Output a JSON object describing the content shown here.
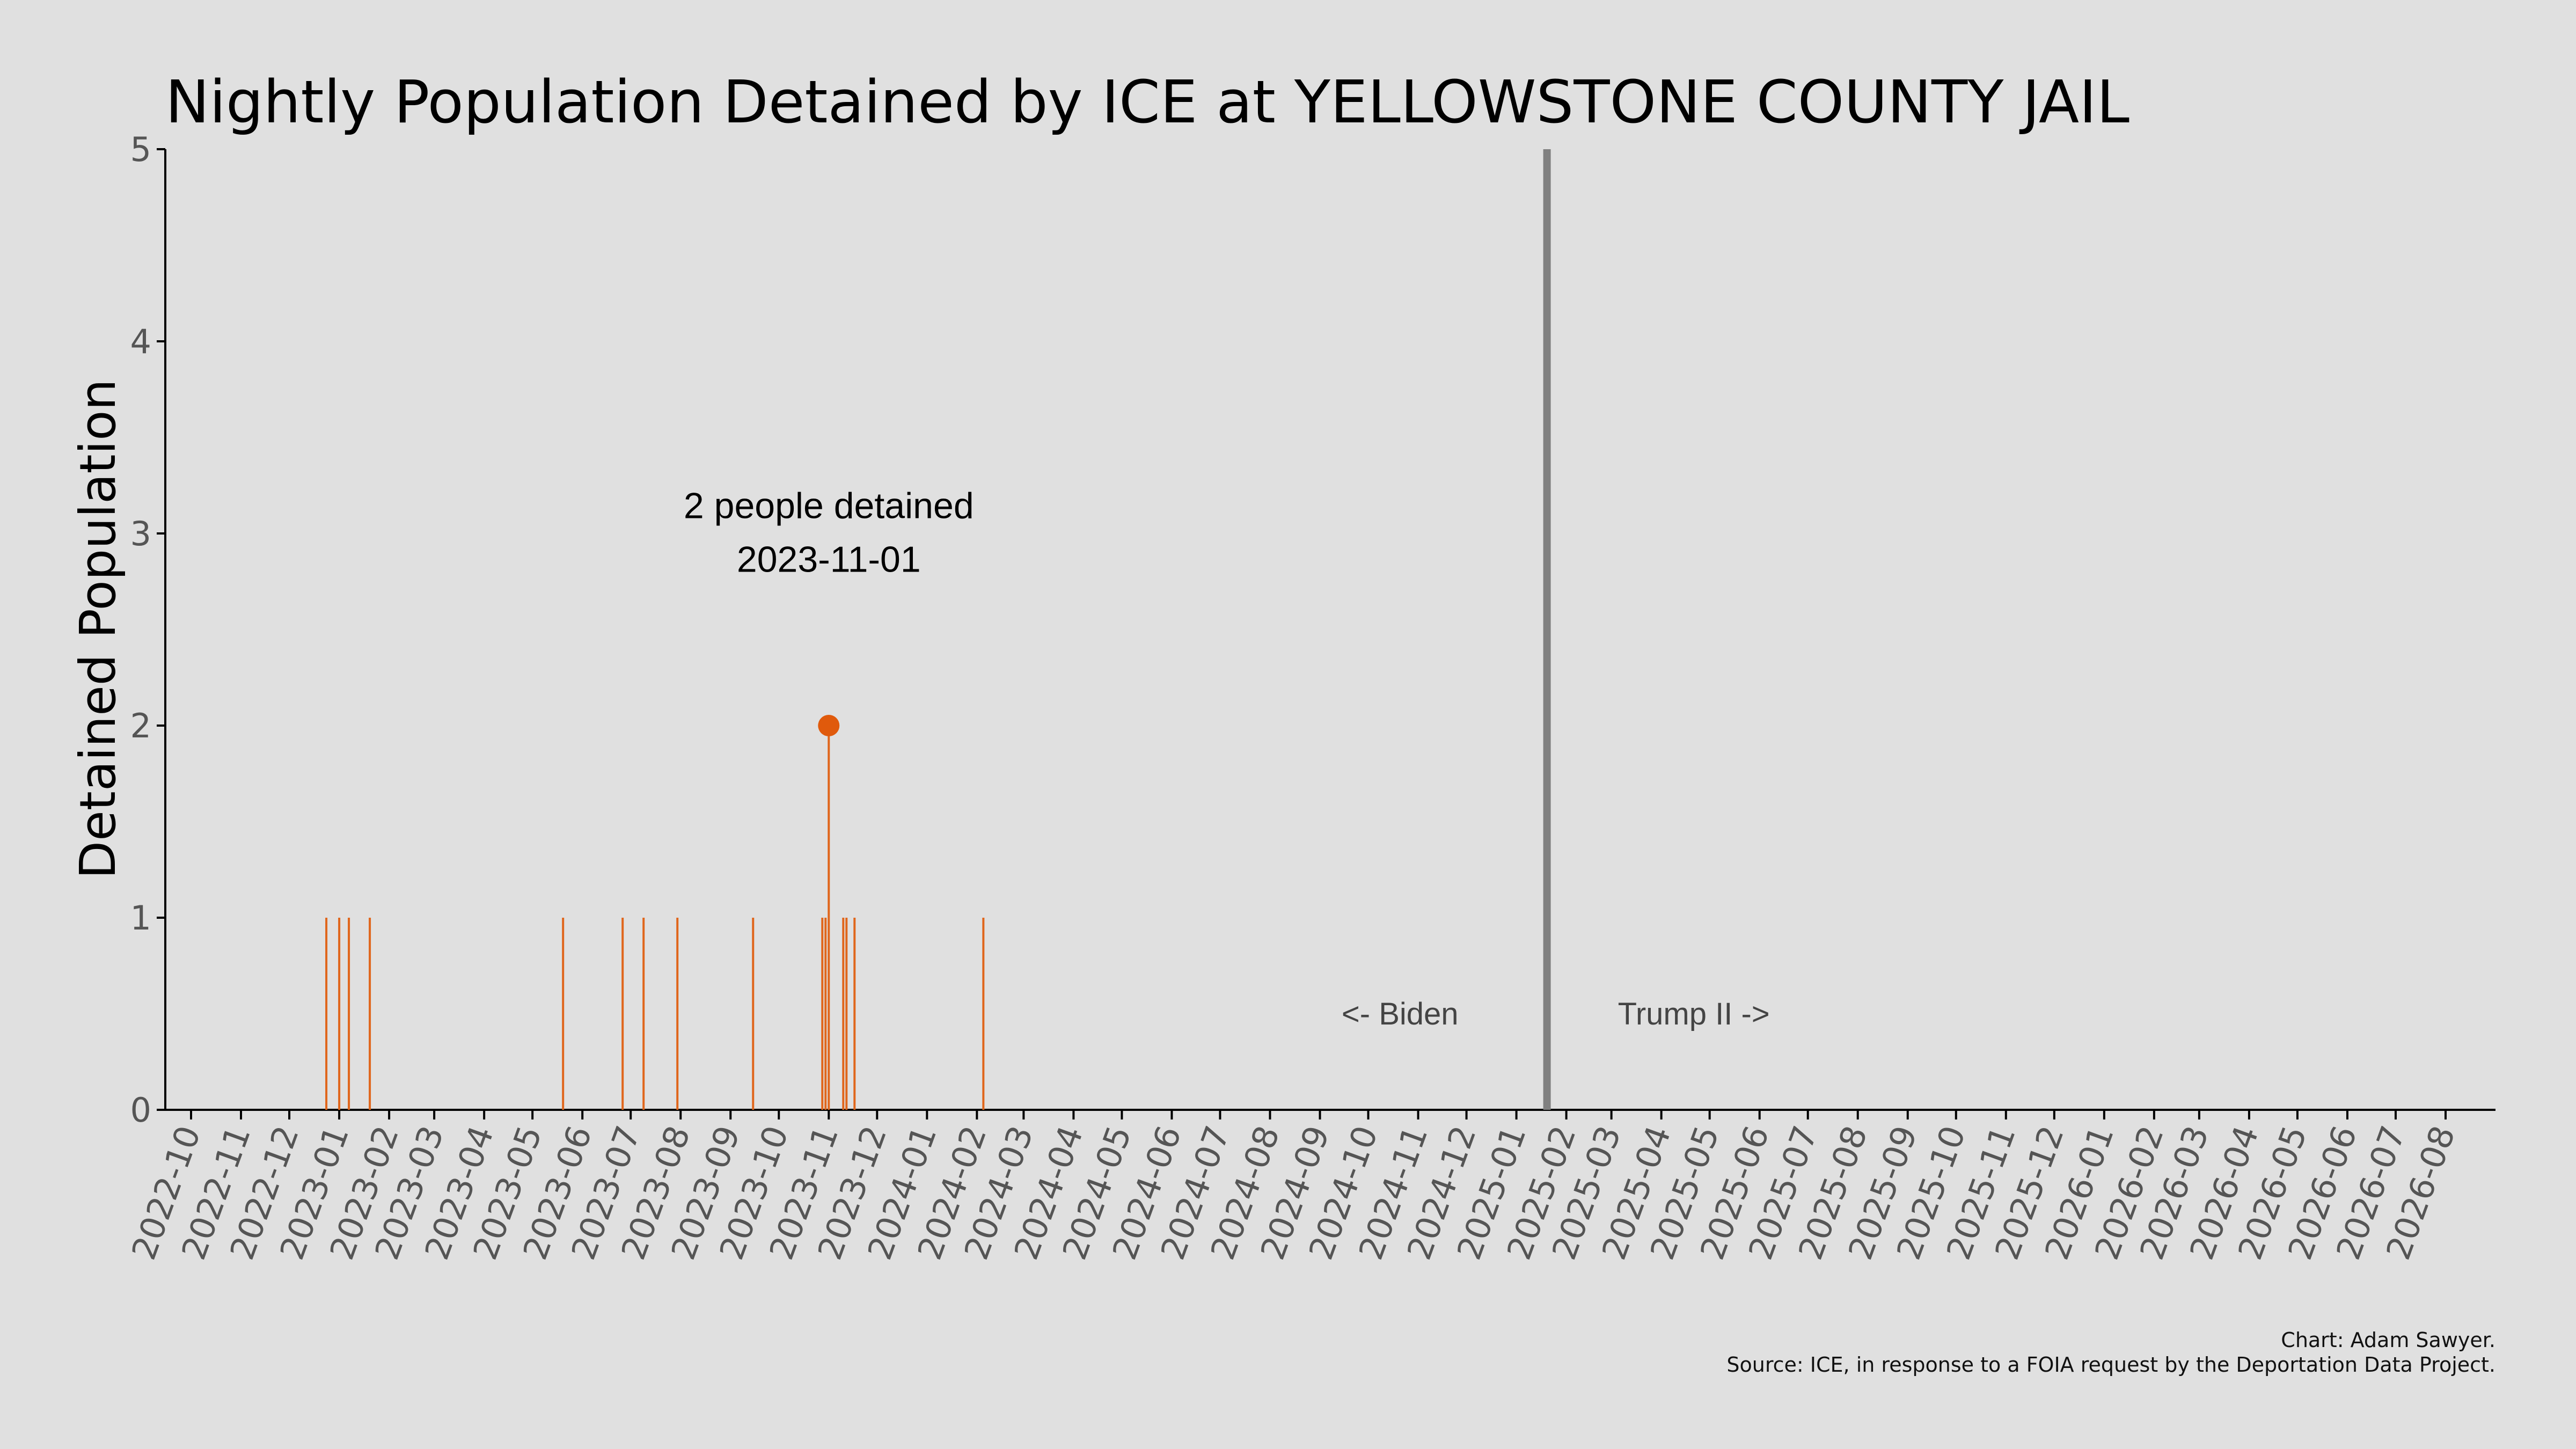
{
  "chart_data": {
    "type": "bar",
    "title": "Nightly Population Detained by ICE at YELLOWSTONE COUNTY JAIL",
    "ylabel": "Detained Population",
    "xlabel": "",
    "ylim": [
      0,
      5
    ],
    "yticks": [
      "0",
      "1",
      "2",
      "3",
      "4",
      "5"
    ],
    "xlim": [
      "2022-09-15",
      "2026-09-01"
    ],
    "xticks": [
      "2022-10",
      "2022-11",
      "2022-12",
      "2023-01",
      "2023-02",
      "2023-03",
      "2023-04",
      "2023-05",
      "2023-06",
      "2023-07",
      "2023-08",
      "2023-09",
      "2023-10",
      "2023-11",
      "2023-12",
      "2024-01",
      "2024-02",
      "2024-03",
      "2024-04",
      "2024-05",
      "2024-06",
      "2024-07",
      "2024-08",
      "2024-09",
      "2024-10",
      "2024-11",
      "2024-12",
      "2025-01",
      "2025-02",
      "2025-03",
      "2025-04",
      "2025-05",
      "2025-06",
      "2025-07",
      "2025-08",
      "2025-09",
      "2025-10",
      "2025-11",
      "2025-12",
      "2026-01",
      "2026-02",
      "2026-03",
      "2026-04",
      "2026-05",
      "2026-06",
      "2026-07",
      "2026-08"
    ],
    "grid": false,
    "series": [
      {
        "x": [
          "2022-12-24",
          "2023-01-01",
          "2023-01-07",
          "2023-01-20",
          "2023-05-20",
          "2023-06-26",
          "2023-07-09",
          "2023-07-30",
          "2023-09-15",
          "2023-10-28",
          "2023-10-30",
          "2023-11-01",
          "2023-11-10",
          "2023-11-12",
          "2023-11-17",
          "2024-02-05"
        ],
        "y": [
          1,
          1,
          1,
          1,
          1,
          1,
          1,
          1,
          1,
          1,
          1,
          2,
          1,
          1,
          1,
          1
        ]
      }
    ],
    "highlight": {
      "x": "2023-11-01",
      "y": 2,
      "line1": "2 people detained",
      "line2": "2023-11-01"
    },
    "divider": {
      "x": "2025-01-20",
      "left_label": "<- Biden",
      "right_label": "Trump II ->"
    },
    "colors": {
      "bars": "#e0661c",
      "highlight": "#e05a0c",
      "divider": "#808080",
      "background": "#e0e0e0"
    }
  },
  "credits": {
    "line1": "Chart: Adam Sawyer.",
    "line2": "Source: ICE, in response to a FOIA request by the Deportation Data Project."
  }
}
